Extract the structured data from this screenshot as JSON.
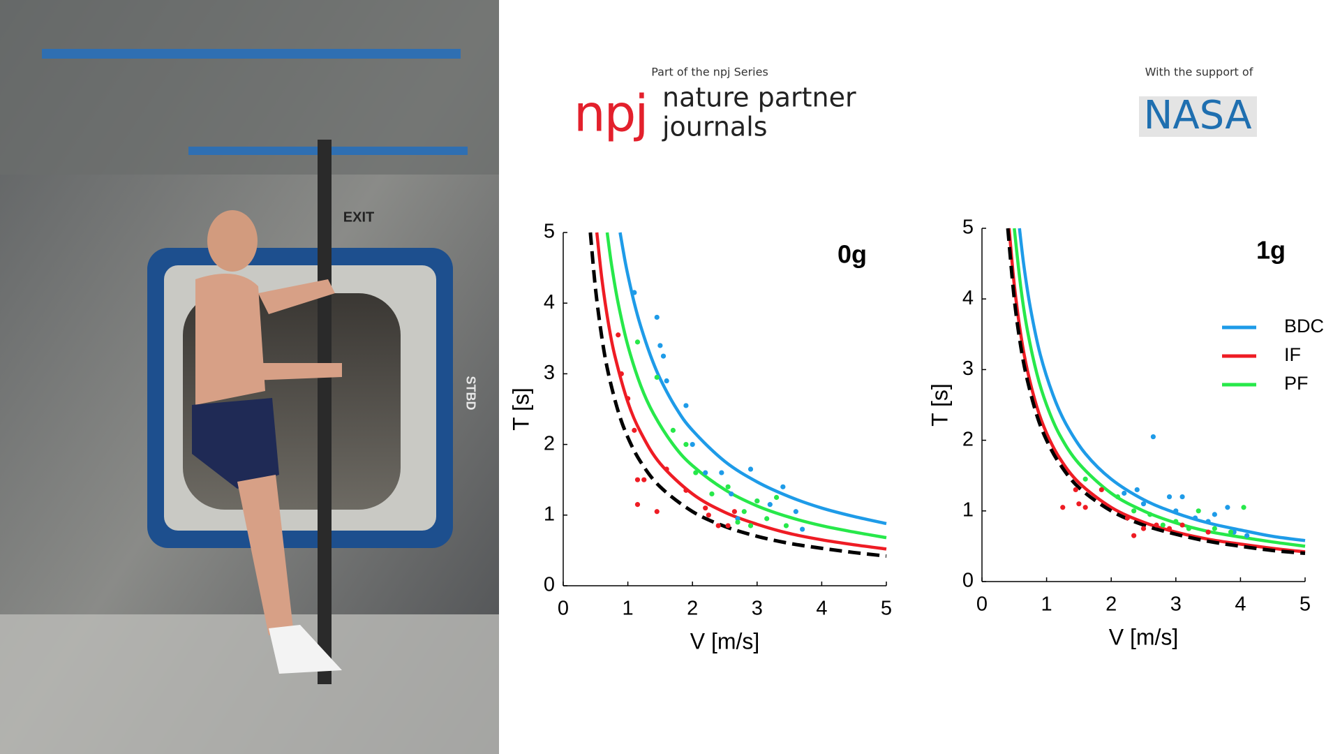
{
  "header": {
    "series_note": "Part of the npj Series",
    "npj": "npj",
    "brand_line1": "nature partner",
    "brand_line2": "journals",
    "support_note": "With the support of",
    "nasa": "NASA"
  },
  "photo": {
    "labels": [
      "EXIT",
      "STBD"
    ]
  },
  "chart_data": [
    {
      "type": "line",
      "title": "0g",
      "x_label": "V [m/s]",
      "y_label": "T [s]",
      "xlim": [
        0,
        5
      ],
      "ylim": [
        0,
        5
      ],
      "xticks": [
        0,
        1,
        2,
        3,
        4,
        5
      ],
      "yticks": [
        0,
        1,
        2,
        3,
        4,
        5
      ],
      "series": [
        {
          "color": "#1e9be8",
          "x": [
            0.88,
            0.95,
            1,
            1.1,
            1.2,
            1.35,
            1.5,
            1.75,
            2,
            2.5,
            3,
            3.5,
            4,
            4.5,
            5
          ],
          "values": [
            5,
            4.63,
            4.4,
            4,
            3.67,
            3.26,
            2.93,
            2.51,
            2.2,
            1.76,
            1.47,
            1.26,
            1.1,
            0.98,
            0.88
          ]
        },
        {
          "color": "#27e84a",
          "x": [
            0.68,
            0.75,
            0.85,
            1,
            1.2,
            1.4,
            1.7,
            2,
            2.5,
            3,
            3.5,
            4,
            4.5,
            5
          ],
          "values": [
            5,
            4.53,
            4,
            3.4,
            2.83,
            2.43,
            2,
            1.7,
            1.36,
            1.13,
            0.97,
            0.85,
            0.76,
            0.68
          ]
        },
        {
          "color": "#ee1c24",
          "x": [
            0.52,
            0.6,
            0.7,
            0.8,
            1,
            1.2,
            1.5,
            2,
            2.5,
            3,
            3.5,
            4,
            4.5,
            5
          ],
          "values": [
            5,
            4.33,
            3.71,
            3.25,
            2.6,
            2.17,
            1.73,
            1.3,
            1.04,
            0.87,
            0.74,
            0.65,
            0.58,
            0.52
          ]
        },
        {
          "color": "#000000",
          "dash": true,
          "x": [
            0.42,
            0.5,
            0.6,
            0.7,
            0.85,
            1,
            1.2,
            1.5,
            2,
            2.5,
            3,
            3.5,
            4,
            4.5,
            5
          ],
          "values": [
            5,
            4.2,
            3.5,
            3,
            2.47,
            2.1,
            1.75,
            1.4,
            1.05,
            0.84,
            0.7,
            0.6,
            0.53,
            0.47,
            0.42
          ]
        },
        {
          "type": "scatter",
          "color": "#1e9be8",
          "x": [
            1.1,
            1.45,
            1.5,
            1.55,
            1.6,
            1.9,
            2.0,
            2.2,
            2.45,
            2.6,
            2.9,
            3.0,
            3.2,
            3.4,
            3.6,
            3.7,
            2.7
          ],
          "values": [
            4.15,
            3.8,
            3.4,
            3.25,
            2.9,
            2.55,
            2.0,
            1.6,
            1.6,
            1.3,
            1.65,
            1.2,
            1.15,
            1.4,
            1.05,
            0.8,
            0.95
          ]
        },
        {
          "type": "scatter",
          "color": "#27e84a",
          "x": [
            1.15,
            1.45,
            1.7,
            1.9,
            2.05,
            2.3,
            2.55,
            2.7,
            2.9,
            3.15,
            3.3,
            3.45,
            3.0,
            2.8
          ],
          "values": [
            3.45,
            2.95,
            2.2,
            2.0,
            1.6,
            1.3,
            1.4,
            0.9,
            0.85,
            0.95,
            1.25,
            0.85,
            1.2,
            1.05
          ]
        },
        {
          "type": "scatter",
          "color": "#ee1c24",
          "x": [
            0.85,
            0.9,
            1.0,
            1.1,
            1.15,
            1.25,
            1.15,
            1.45,
            1.6,
            1.9,
            2.2,
            2.25,
            2.4,
            2.55,
            2.65
          ],
          "values": [
            3.55,
            3.0,
            2.65,
            2.2,
            1.5,
            1.5,
            1.15,
            1.05,
            1.65,
            1.35,
            1.1,
            1.0,
            0.85,
            0.85,
            1.05
          ]
        }
      ]
    },
    {
      "type": "line",
      "title": "1g",
      "x_label": "V [m/s]",
      "y_label": "T [s]",
      "xlim": [
        0,
        5
      ],
      "ylim": [
        0,
        5
      ],
      "xticks": [
        0,
        1,
        2,
        3,
        4,
        5
      ],
      "yticks": [
        0,
        1,
        2,
        3,
        4,
        5
      ],
      "legend": "right",
      "series": [
        {
          "name": "BDC",
          "color": "#1e9be8",
          "x": [
            0.58,
            0.65,
            0.75,
            0.9,
            1.1,
            1.3,
            1.6,
            2,
            2.5,
            3,
            3.5,
            4,
            4.5,
            5
          ],
          "values": [
            5,
            4.46,
            3.87,
            3.22,
            2.64,
            2.23,
            1.81,
            1.45,
            1.16,
            0.97,
            0.83,
            0.73,
            0.64,
            0.58
          ]
        },
        {
          "name": "IF",
          "color": "#ee1c24",
          "x": [
            0.42,
            0.5,
            0.6,
            0.7,
            0.85,
            1,
            1.2,
            1.5,
            2,
            2.5,
            3,
            3.5,
            4,
            4.5,
            5
          ],
          "values": [
            5,
            4.2,
            3.5,
            3,
            2.47,
            2.1,
            1.75,
            1.4,
            1.05,
            0.84,
            0.7,
            0.6,
            0.53,
            0.47,
            0.42
          ]
        },
        {
          "name": "PF",
          "color": "#27e84a",
          "x": [
            0.5,
            0.6,
            0.7,
            0.85,
            1,
            1.2,
            1.5,
            2,
            2.5,
            3,
            3.5,
            4,
            4.5,
            5
          ],
          "values": [
            5,
            4.17,
            3.57,
            2.94,
            2.5,
            2.08,
            1.67,
            1.25,
            1,
            0.83,
            0.71,
            0.63,
            0.56,
            0.5
          ]
        },
        {
          "color": "#000000",
          "dash": true,
          "x": [
            0.4,
            0.5,
            0.6,
            0.7,
            0.85,
            1,
            1.2,
            1.5,
            2,
            2.5,
            3,
            3.5,
            4,
            4.5,
            5
          ],
          "values": [
            5,
            4,
            3.33,
            2.86,
            2.35,
            2,
            1.67,
            1.33,
            1,
            0.8,
            0.67,
            0.57,
            0.5,
            0.44,
            0.4
          ]
        },
        {
          "type": "scatter",
          "color": "#1e9be8",
          "x": [
            2.65,
            2.2,
            2.4,
            2.9,
            3.1,
            3.0,
            3.3,
            3.5,
            3.8,
            3.6,
            3.9,
            4.1,
            2.5
          ],
          "values": [
            2.05,
            1.25,
            1.3,
            1.2,
            1.2,
            1.0,
            0.9,
            0.85,
            1.05,
            0.95,
            0.7,
            0.65,
            1.1
          ]
        },
        {
          "type": "scatter",
          "color": "#27e84a",
          "x": [
            1.6,
            2.1,
            2.6,
            2.8,
            3.0,
            3.2,
            3.35,
            3.6,
            4.05,
            3.85,
            2.35
          ],
          "values": [
            1.45,
            1.2,
            0.95,
            0.8,
            0.85,
            0.75,
            1.0,
            0.75,
            1.05,
            0.7,
            1.0
          ]
        },
        {
          "type": "scatter",
          "color": "#ee1c24",
          "x": [
            1.25,
            1.45,
            1.5,
            1.6,
            1.85,
            2.25,
            2.35,
            2.5,
            2.7,
            2.9,
            3.1,
            3.5
          ],
          "values": [
            1.05,
            1.3,
            1.1,
            1.05,
            1.3,
            0.9,
            0.65,
            0.75,
            0.8,
            0.75,
            0.8,
            0.7
          ]
        }
      ]
    }
  ]
}
